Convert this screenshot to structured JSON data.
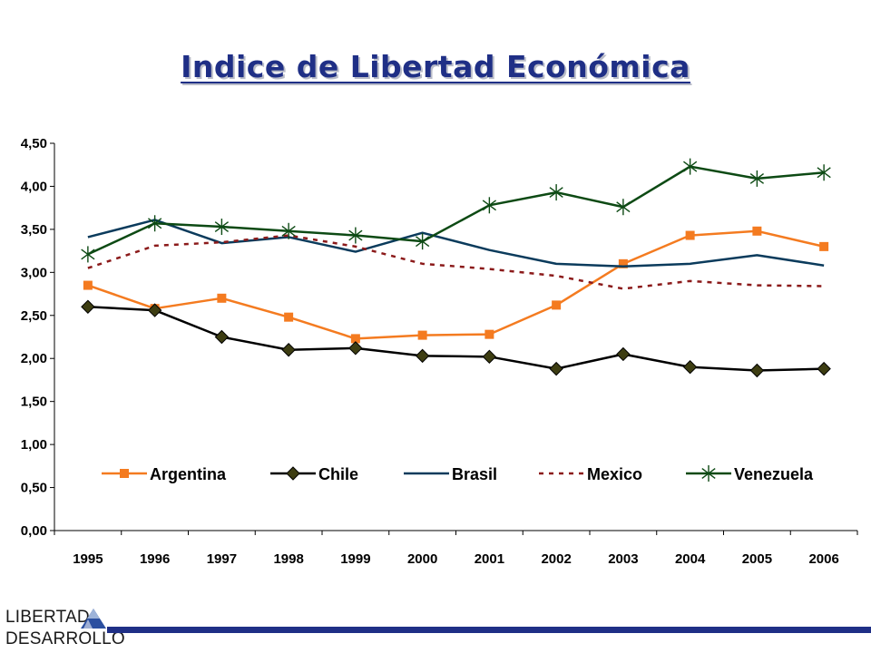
{
  "slide": {
    "title": "Indice de Libertad Económica",
    "logo_line1": "LIBERTAD",
    "logo_line2": "DESARROLLO"
  },
  "colors": {
    "title": "#1f2f86",
    "argentina": "#f47b20",
    "chile": "#000000",
    "chile_marker": "#3d3d12",
    "brasil": "#0b3b5c",
    "mexico": "#8b1a1a",
    "venezuela": "#0d4a14",
    "logo_bar": "#1f2f86"
  },
  "chart_data": {
    "type": "line",
    "title": "",
    "xlabel": "",
    "ylabel": "",
    "categories": [
      "1995",
      "1996",
      "1997",
      "1998",
      "1999",
      "2000",
      "2001",
      "2002",
      "2003",
      "2004",
      "2005",
      "2006"
    ],
    "ylim": [
      0,
      4.5
    ],
    "yticks": [
      "0,00",
      "0,50",
      "1,00",
      "1,50",
      "2,00",
      "2,50",
      "3,00",
      "3,50",
      "4,00",
      "4,50"
    ],
    "grid": false,
    "legend_position": "inside-bottom",
    "series": [
      {
        "name": "Argentina",
        "color": "#f47b20",
        "marker": "square",
        "dash": false,
        "values": [
          2.85,
          2.58,
          2.7,
          2.48,
          2.23,
          2.27,
          2.28,
          2.62,
          3.1,
          3.43,
          3.48,
          3.3
        ]
      },
      {
        "name": "Chile",
        "color": "#000000",
        "marker": "diamond",
        "dash": false,
        "values": [
          2.6,
          2.56,
          2.25,
          2.1,
          2.12,
          2.03,
          2.02,
          1.88,
          2.05,
          1.9,
          1.86,
          1.88
        ]
      },
      {
        "name": "Brasil",
        "color": "#0b3b5c",
        "marker": "none",
        "dash": false,
        "values": [
          3.41,
          3.61,
          3.34,
          3.41,
          3.24,
          3.46,
          3.26,
          3.1,
          3.07,
          3.1,
          3.2,
          3.08
        ]
      },
      {
        "name": "Mexico",
        "color": "#8b1a1a",
        "marker": "none",
        "dash": true,
        "values": [
          3.05,
          3.31,
          3.35,
          3.43,
          3.3,
          3.1,
          3.04,
          2.96,
          2.81,
          2.9,
          2.85,
          2.84
        ]
      },
      {
        "name": "Venezuela",
        "color": "#0d4a14",
        "marker": "star",
        "dash": false,
        "values": [
          3.21,
          3.57,
          3.53,
          3.48,
          3.43,
          3.36,
          3.78,
          3.93,
          3.76,
          4.23,
          4.09,
          4.16
        ]
      }
    ]
  }
}
